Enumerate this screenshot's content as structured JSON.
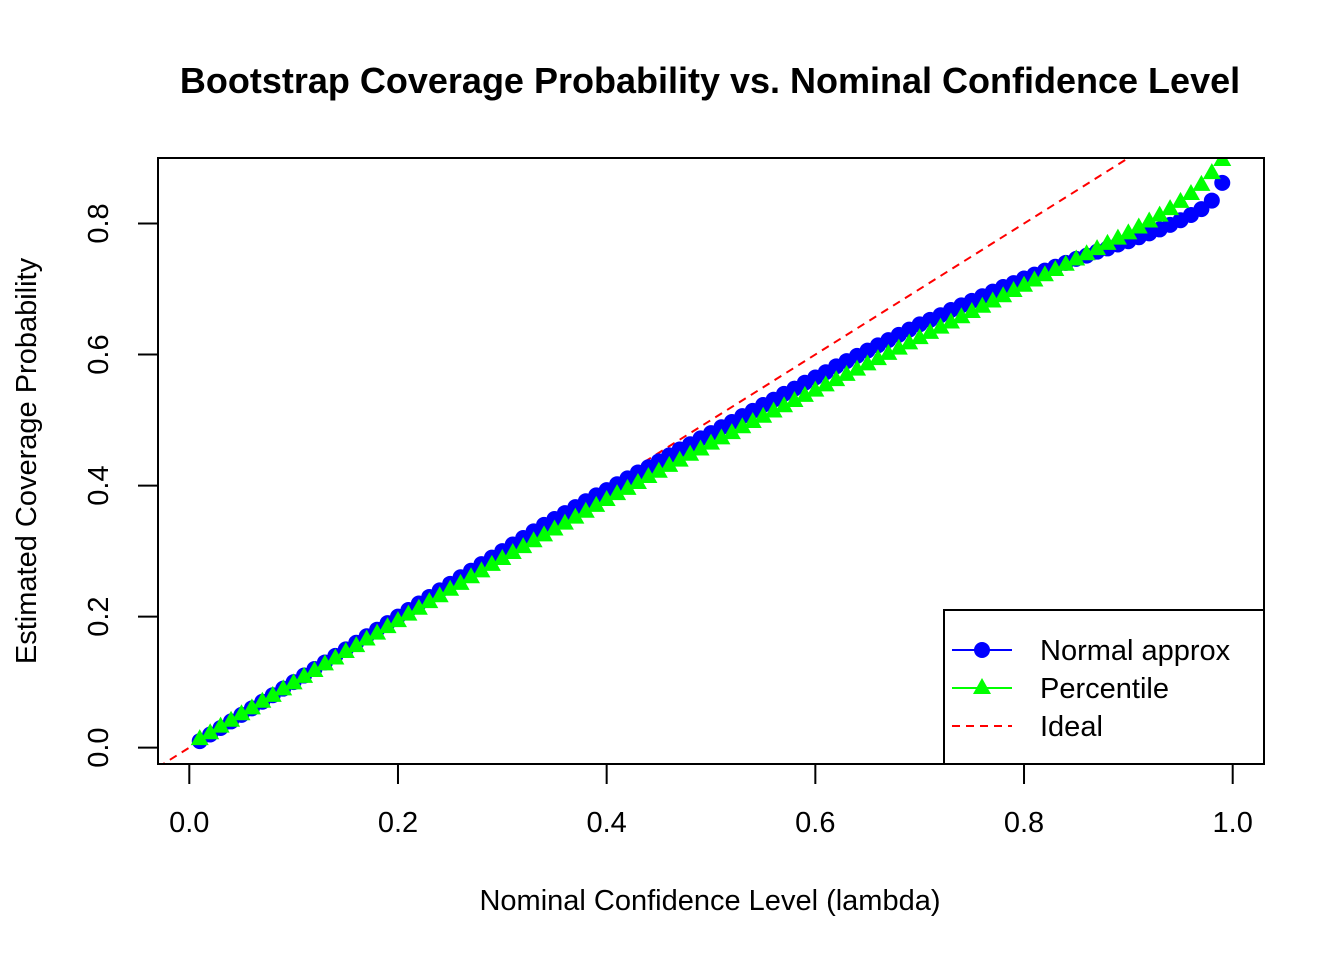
{
  "chart_data": {
    "type": "scatter",
    "title": "Bootstrap Coverage Probability vs. Nominal Confidence Level",
    "xlabel": "Nominal Confidence Level (lambda)",
    "ylabel": "Estimated Coverage Probability",
    "xlim": [
      -0.03,
      1.03
    ],
    "ylim": [
      -0.025,
      0.9
    ],
    "x_ticks": [
      "0.0",
      "0.2",
      "0.4",
      "0.6",
      "0.8",
      "1.0"
    ],
    "y_ticks": [
      "0.0",
      "0.2",
      "0.4",
      "0.6",
      "0.8"
    ],
    "grid": false,
    "legend_position": "bottom-right",
    "series": [
      {
        "name": "Normal approx",
        "color": "#0000ff",
        "marker": "circle",
        "points": [
          [
            0.01,
            0.01
          ],
          [
            0.02,
            0.02
          ],
          [
            0.03,
            0.03
          ],
          [
            0.04,
            0.04
          ],
          [
            0.05,
            0.05
          ],
          [
            0.06,
            0.06
          ],
          [
            0.07,
            0.07
          ],
          [
            0.08,
            0.08
          ],
          [
            0.09,
            0.09
          ],
          [
            0.1,
            0.1
          ],
          [
            0.11,
            0.11
          ],
          [
            0.12,
            0.12
          ],
          [
            0.13,
            0.13
          ],
          [
            0.14,
            0.14
          ],
          [
            0.15,
            0.15
          ],
          [
            0.16,
            0.16
          ],
          [
            0.17,
            0.17
          ],
          [
            0.18,
            0.18
          ],
          [
            0.19,
            0.19
          ],
          [
            0.2,
            0.2
          ],
          [
            0.21,
            0.21
          ],
          [
            0.22,
            0.22
          ],
          [
            0.23,
            0.23
          ],
          [
            0.24,
            0.24
          ],
          [
            0.25,
            0.25
          ],
          [
            0.26,
            0.26
          ],
          [
            0.27,
            0.27
          ],
          [
            0.28,
            0.28
          ],
          [
            0.29,
            0.29
          ],
          [
            0.3,
            0.3
          ],
          [
            0.31,
            0.31
          ],
          [
            0.32,
            0.32
          ],
          [
            0.33,
            0.33
          ],
          [
            0.34,
            0.34
          ],
          [
            0.35,
            0.349
          ],
          [
            0.36,
            0.358
          ],
          [
            0.37,
            0.367
          ],
          [
            0.38,
            0.376
          ],
          [
            0.39,
            0.385
          ],
          [
            0.4,
            0.393
          ],
          [
            0.41,
            0.402
          ],
          [
            0.42,
            0.411
          ],
          [
            0.43,
            0.42
          ],
          [
            0.44,
            0.428
          ],
          [
            0.45,
            0.437
          ],
          [
            0.46,
            0.446
          ],
          [
            0.47,
            0.455
          ],
          [
            0.48,
            0.463
          ],
          [
            0.49,
            0.472
          ],
          [
            0.5,
            0.48
          ],
          [
            0.51,
            0.489
          ],
          [
            0.52,
            0.497
          ],
          [
            0.53,
            0.506
          ],
          [
            0.54,
            0.514
          ],
          [
            0.55,
            0.523
          ],
          [
            0.56,
            0.531
          ],
          [
            0.57,
            0.54
          ],
          [
            0.58,
            0.548
          ],
          [
            0.59,
            0.557
          ],
          [
            0.6,
            0.565
          ],
          [
            0.61,
            0.573
          ],
          [
            0.62,
            0.582
          ],
          [
            0.63,
            0.59
          ],
          [
            0.64,
            0.598
          ],
          [
            0.65,
            0.606
          ],
          [
            0.66,
            0.614
          ],
          [
            0.67,
            0.622
          ],
          [
            0.68,
            0.63
          ],
          [
            0.69,
            0.638
          ],
          [
            0.7,
            0.646
          ],
          [
            0.71,
            0.653
          ],
          [
            0.72,
            0.66
          ],
          [
            0.73,
            0.668
          ],
          [
            0.74,
            0.675
          ],
          [
            0.75,
            0.682
          ],
          [
            0.76,
            0.689
          ],
          [
            0.77,
            0.696
          ],
          [
            0.78,
            0.703
          ],
          [
            0.79,
            0.709
          ],
          [
            0.8,
            0.716
          ],
          [
            0.81,
            0.722
          ],
          [
            0.82,
            0.728
          ],
          [
            0.83,
            0.734
          ],
          [
            0.84,
            0.74
          ],
          [
            0.85,
            0.746
          ],
          [
            0.86,
            0.751
          ],
          [
            0.87,
            0.757
          ],
          [
            0.88,
            0.762
          ],
          [
            0.89,
            0.768
          ],
          [
            0.9,
            0.773
          ],
          [
            0.91,
            0.779
          ],
          [
            0.92,
            0.785
          ],
          [
            0.93,
            0.791
          ],
          [
            0.94,
            0.798
          ],
          [
            0.95,
            0.805
          ],
          [
            0.96,
            0.813
          ],
          [
            0.97,
            0.822
          ],
          [
            0.98,
            0.835
          ],
          [
            0.99,
            0.862
          ]
        ]
      },
      {
        "name": "Percentile",
        "color": "#00ff00",
        "marker": "triangle",
        "points": [
          [
            0.01,
            0.013
          ],
          [
            0.02,
            0.022
          ],
          [
            0.03,
            0.032
          ],
          [
            0.04,
            0.041
          ],
          [
            0.05,
            0.051
          ],
          [
            0.06,
            0.06
          ],
          [
            0.07,
            0.07
          ],
          [
            0.08,
            0.079
          ],
          [
            0.09,
            0.089
          ],
          [
            0.1,
            0.098
          ],
          [
            0.11,
            0.108
          ],
          [
            0.12,
            0.117
          ],
          [
            0.13,
            0.127
          ],
          [
            0.14,
            0.136
          ],
          [
            0.15,
            0.146
          ],
          [
            0.16,
            0.155
          ],
          [
            0.17,
            0.165
          ],
          [
            0.18,
            0.174
          ],
          [
            0.19,
            0.184
          ],
          [
            0.2,
            0.193
          ],
          [
            0.21,
            0.203
          ],
          [
            0.22,
            0.212
          ],
          [
            0.23,
            0.222
          ],
          [
            0.24,
            0.231
          ],
          [
            0.25,
            0.241
          ],
          [
            0.26,
            0.25
          ],
          [
            0.27,
            0.26
          ],
          [
            0.28,
            0.269
          ],
          [
            0.29,
            0.279
          ],
          [
            0.3,
            0.288
          ],
          [
            0.31,
            0.297
          ],
          [
            0.32,
            0.306
          ],
          [
            0.33,
            0.315
          ],
          [
            0.34,
            0.324
          ],
          [
            0.35,
            0.333
          ],
          [
            0.36,
            0.342
          ],
          [
            0.37,
            0.351
          ],
          [
            0.38,
            0.36
          ],
          [
            0.39,
            0.369
          ],
          [
            0.4,
            0.378
          ],
          [
            0.41,
            0.387
          ],
          [
            0.42,
            0.395
          ],
          [
            0.43,
            0.404
          ],
          [
            0.44,
            0.413
          ],
          [
            0.45,
            0.421
          ],
          [
            0.46,
            0.43
          ],
          [
            0.47,
            0.438
          ],
          [
            0.48,
            0.447
          ],
          [
            0.49,
            0.455
          ],
          [
            0.5,
            0.464
          ],
          [
            0.51,
            0.472
          ],
          [
            0.52,
            0.48
          ],
          [
            0.53,
            0.489
          ],
          [
            0.54,
            0.497
          ],
          [
            0.55,
            0.505
          ],
          [
            0.56,
            0.513
          ],
          [
            0.57,
            0.521
          ],
          [
            0.58,
            0.529
          ],
          [
            0.59,
            0.537
          ],
          [
            0.6,
            0.545
          ],
          [
            0.61,
            0.553
          ],
          [
            0.62,
            0.561
          ],
          [
            0.63,
            0.569
          ],
          [
            0.64,
            0.577
          ],
          [
            0.65,
            0.585
          ],
          [
            0.66,
            0.593
          ],
          [
            0.67,
            0.601
          ],
          [
            0.68,
            0.609
          ],
          [
            0.69,
            0.617
          ],
          [
            0.7,
            0.625
          ],
          [
            0.71,
            0.633
          ],
          [
            0.72,
            0.641
          ],
          [
            0.73,
            0.649
          ],
          [
            0.74,
            0.657
          ],
          [
            0.75,
            0.665
          ],
          [
            0.76,
            0.673
          ],
          [
            0.77,
            0.681
          ],
          [
            0.78,
            0.689
          ],
          [
            0.79,
            0.697
          ],
          [
            0.8,
            0.705
          ],
          [
            0.81,
            0.713
          ],
          [
            0.82,
            0.721
          ],
          [
            0.83,
            0.729
          ],
          [
            0.84,
            0.737
          ],
          [
            0.85,
            0.745
          ],
          [
            0.86,
            0.753
          ],
          [
            0.87,
            0.761
          ],
          [
            0.88,
            0.769
          ],
          [
            0.89,
            0.777
          ],
          [
            0.9,
            0.785
          ],
          [
            0.91,
            0.794
          ],
          [
            0.92,
            0.803
          ],
          [
            0.93,
            0.812
          ],
          [
            0.94,
            0.822
          ],
          [
            0.95,
            0.833
          ],
          [
            0.96,
            0.845
          ],
          [
            0.97,
            0.859
          ],
          [
            0.98,
            0.877
          ],
          [
            0.99,
            0.897
          ]
        ]
      },
      {
        "name": "Ideal",
        "color": "#ff0000",
        "marker": "dashed-line",
        "line": [
          [
            -0.03,
            -0.03
          ],
          [
            1.03,
            1.03
          ]
        ]
      }
    ]
  }
}
